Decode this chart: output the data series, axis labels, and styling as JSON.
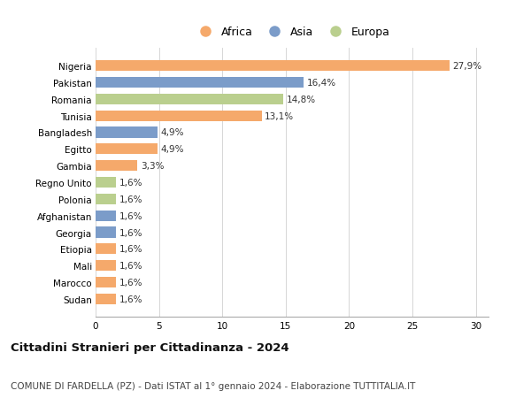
{
  "countries": [
    "Nigeria",
    "Pakistan",
    "Romania",
    "Tunisia",
    "Bangladesh",
    "Egitto",
    "Gambia",
    "Regno Unito",
    "Polonia",
    "Afghanistan",
    "Georgia",
    "Etiopia",
    "Mali",
    "Marocco",
    "Sudan"
  ],
  "values": [
    27.9,
    16.4,
    14.8,
    13.1,
    4.9,
    4.9,
    3.3,
    1.6,
    1.6,
    1.6,
    1.6,
    1.6,
    1.6,
    1.6,
    1.6
  ],
  "labels": [
    "27,9%",
    "16,4%",
    "14,8%",
    "13,1%",
    "4,9%",
    "4,9%",
    "3,3%",
    "1,6%",
    "1,6%",
    "1,6%",
    "1,6%",
    "1,6%",
    "1,6%",
    "1,6%",
    "1,6%"
  ],
  "continents": [
    "Africa",
    "Asia",
    "Europa",
    "Africa",
    "Asia",
    "Africa",
    "Africa",
    "Europa",
    "Europa",
    "Asia",
    "Asia",
    "Africa",
    "Africa",
    "Africa",
    "Africa"
  ],
  "colors": {
    "Africa": "#F5A96B",
    "Asia": "#7B9CC9",
    "Europa": "#BACF8E"
  },
  "legend_labels": [
    "Africa",
    "Asia",
    "Europa"
  ],
  "title": "Cittadini Stranieri per Cittadinanza - 2024",
  "subtitle": "COMUNE DI FARDELLA (PZ) - Dati ISTAT al 1° gennaio 2024 - Elaborazione TUTTITALIA.IT",
  "xlim": [
    0,
    31
  ],
  "xticks": [
    0,
    5,
    10,
    15,
    20,
    25,
    30
  ],
  "bg_color": "#ffffff",
  "bar_height": 0.65,
  "title_fontsize": 9.5,
  "subtitle_fontsize": 7.5,
  "tick_fontsize": 7.5,
  "label_fontsize": 7.5
}
